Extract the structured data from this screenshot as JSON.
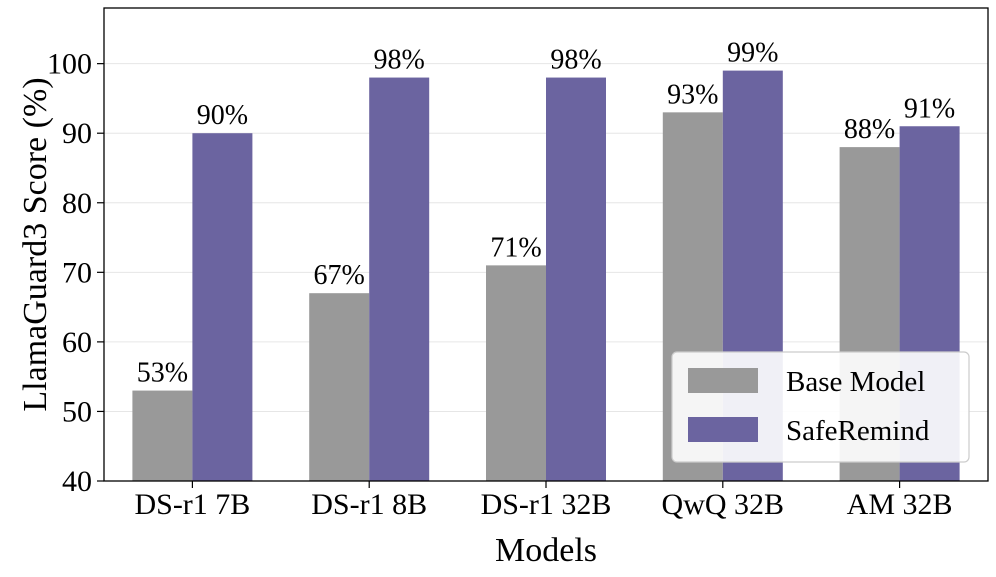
{
  "chart_data": {
    "type": "bar",
    "title": "",
    "xlabel": "Models",
    "ylabel": "LlamaGuard3 Score (%)",
    "ylim": [
      40,
      108
    ],
    "yticks": [
      40,
      50,
      60,
      70,
      80,
      90,
      100
    ],
    "grid": true,
    "legend_position": "bottom-right",
    "categories": [
      "DS-r1 7B",
      "DS-r1 8B",
      "DS-r1 32B",
      "QwQ 32B",
      "AM 32B"
    ],
    "series": [
      {
        "name": "Base Model",
        "color": "#999999",
        "values": [
          53,
          67,
          71,
          93,
          88
        ],
        "labels": [
          "53%",
          "67%",
          "71%",
          "93%",
          "88%"
        ]
      },
      {
        "name": "SafeRemind",
        "color": "#6b64a0",
        "values": [
          90,
          98,
          98,
          99,
          91
        ],
        "labels": [
          "90%",
          "98%",
          "98%",
          "99%",
          "91%"
        ]
      }
    ]
  }
}
